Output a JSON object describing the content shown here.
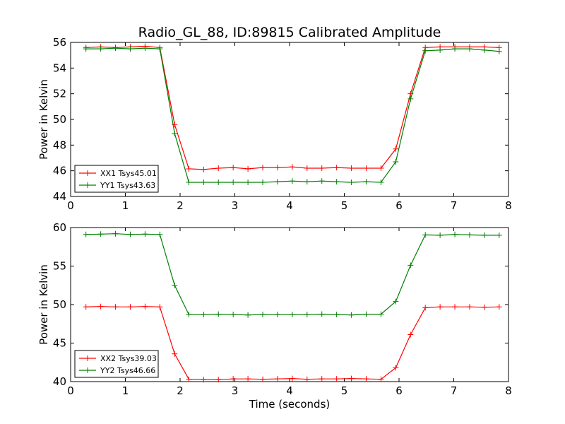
{
  "figure": {
    "title": "Radio_GL_88, ID:89815 Calibrated Amplitude",
    "colors": {
      "red": "#ff0000",
      "green": "#008000"
    }
  },
  "chart_data": [
    {
      "type": "line",
      "title": "Radio_GL_88, ID:89815 Calibrated Amplitude",
      "xlabel": "",
      "ylabel": "Power in Kelvin",
      "xlim": [
        0,
        8
      ],
      "ylim": [
        44,
        56
      ],
      "xticks": [
        0,
        1,
        2,
        3,
        4,
        5,
        6,
        7,
        8
      ],
      "yticks": [
        44,
        46,
        48,
        50,
        52,
        54,
        56
      ],
      "grid": false,
      "legend_position": "lower-left",
      "x": [
        0.28,
        0.55,
        0.82,
        1.09,
        1.36,
        1.63,
        1.9,
        2.16,
        2.43,
        2.7,
        2.97,
        3.24,
        3.51,
        3.78,
        4.05,
        4.32,
        4.59,
        4.86,
        5.13,
        5.4,
        5.67,
        5.94,
        6.21,
        6.48,
        6.75,
        7.02,
        7.29,
        7.56,
        7.83
      ],
      "series": [
        {
          "name": "XX1 Tsys45.01",
          "color": "#ff0000",
          "values": [
            55.6,
            55.65,
            55.6,
            55.65,
            55.7,
            55.6,
            49.6,
            46.15,
            46.1,
            46.2,
            46.25,
            46.15,
            46.25,
            46.25,
            46.3,
            46.2,
            46.2,
            46.25,
            46.2,
            46.2,
            46.2,
            47.7,
            52.0,
            55.6,
            55.65,
            55.65,
            55.65,
            55.65,
            55.6
          ]
        },
        {
          "name": "YY1 Tsys43.63",
          "color": "#008000",
          "values": [
            55.5,
            55.5,
            55.55,
            55.5,
            55.55,
            55.5,
            48.9,
            45.1,
            45.1,
            45.1,
            45.1,
            45.1,
            45.1,
            45.15,
            45.2,
            45.15,
            45.2,
            45.15,
            45.1,
            45.15,
            45.1,
            46.7,
            51.6,
            55.35,
            55.4,
            55.5,
            55.5,
            55.4,
            55.3
          ]
        }
      ]
    },
    {
      "type": "line",
      "title": "",
      "xlabel": "Time (seconds)",
      "ylabel": "Power in Kelvin",
      "xlim": [
        0,
        8
      ],
      "ylim": [
        40,
        60
      ],
      "xticks": [
        0,
        1,
        2,
        3,
        4,
        5,
        6,
        7,
        8
      ],
      "yticks": [
        40,
        45,
        50,
        55,
        60
      ],
      "grid": false,
      "legend_position": "lower-left",
      "x": [
        0.28,
        0.55,
        0.82,
        1.09,
        1.36,
        1.63,
        1.9,
        2.16,
        2.43,
        2.7,
        2.97,
        3.24,
        3.51,
        3.78,
        4.05,
        4.32,
        4.59,
        4.86,
        5.13,
        5.4,
        5.67,
        5.94,
        6.21,
        6.48,
        6.75,
        7.02,
        7.29,
        7.56,
        7.83
      ],
      "series": [
        {
          "name": "XX2 Tsys39.03",
          "color": "#ff0000",
          "values": [
            49.7,
            49.75,
            49.7,
            49.7,
            49.75,
            49.7,
            43.6,
            40.3,
            40.25,
            40.25,
            40.35,
            40.35,
            40.3,
            40.35,
            40.4,
            40.3,
            40.35,
            40.35,
            40.4,
            40.35,
            40.3,
            41.8,
            46.1,
            49.6,
            49.7,
            49.7,
            49.7,
            49.65,
            49.7
          ]
        },
        {
          "name": "YY2 Tsys46.66",
          "color": "#008000",
          "values": [
            59.1,
            59.15,
            59.2,
            59.1,
            59.15,
            59.1,
            52.5,
            48.7,
            48.7,
            48.75,
            48.7,
            48.65,
            48.7,
            48.7,
            48.7,
            48.7,
            48.75,
            48.7,
            48.65,
            48.75,
            48.75,
            50.4,
            55.1,
            59.05,
            59.0,
            59.1,
            59.05,
            59.0,
            59.0
          ]
        }
      ]
    }
  ]
}
